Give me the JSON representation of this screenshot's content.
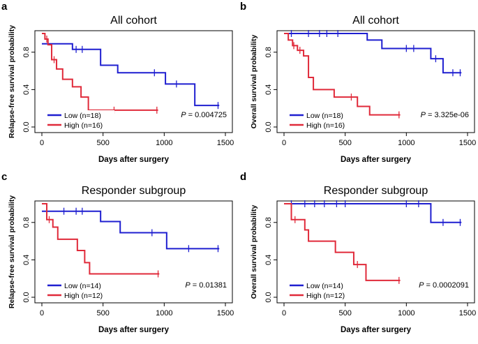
{
  "chart_data": [
    {
      "type": "line",
      "panel_label": "a",
      "title": "All cohort",
      "xlabel": "Days after surgery",
      "ylabel": "Relapse-free survival probability",
      "xlim": [
        0,
        1500
      ],
      "ylim": [
        0,
        1.0
      ],
      "xticks": [
        "0",
        "500",
        "1000",
        "1500"
      ],
      "yticks": [
        "0.0",
        "0.4",
        "0.8"
      ],
      "pvalue_prefix": "P",
      "pvalue": "= 0.004725",
      "series": [
        {
          "name": "Low (n=18)",
          "color": "#1f1fd0",
          "steps": [
            [
              0,
              0.89
            ],
            [
              250,
              0.83
            ],
            [
              480,
              0.66
            ],
            [
              620,
              0.58
            ],
            [
              1010,
              0.46
            ],
            [
              1250,
              0.23
            ],
            [
              1450,
              0.23
            ]
          ],
          "censor": [
            [
              280,
              0.83
            ],
            [
              330,
              0.83
            ],
            [
              920,
              0.58
            ],
            [
              1100,
              0.46
            ],
            [
              1440,
              0.23
            ]
          ]
        },
        {
          "name": "High (n=16)",
          "color": "#e02a3a",
          "steps": [
            [
              0,
              1.0
            ],
            [
              25,
              0.94
            ],
            [
              50,
              0.88
            ],
            [
              80,
              0.72
            ],
            [
              120,
              0.62
            ],
            [
              170,
              0.51
            ],
            [
              250,
              0.43
            ],
            [
              320,
              0.32
            ],
            [
              380,
              0.18
            ],
            [
              950,
              0.18
            ]
          ],
          "censor": [
            [
              40,
              0.94
            ],
            [
              100,
              0.72
            ],
            [
              590,
              0.18
            ],
            [
              940,
              0.18
            ]
          ]
        }
      ]
    },
    {
      "type": "line",
      "panel_label": "b",
      "title": "All cohort",
      "xlabel": "Days after surgery",
      "ylabel": "Overall survival probability",
      "xlim": [
        0,
        1500
      ],
      "ylim": [
        0,
        1.0
      ],
      "xticks": [
        "0",
        "500",
        "1000",
        "1500"
      ],
      "yticks": [
        "0.0",
        "0.4",
        "0.8"
      ],
      "pvalue_prefix": "P",
      "pvalue": "= 3.325e-06",
      "series": [
        {
          "name": "Low (n=18)",
          "color": "#1f1fd0",
          "steps": [
            [
              0,
              1.0
            ],
            [
              680,
              0.93
            ],
            [
              800,
              0.84
            ],
            [
              1200,
              0.73
            ],
            [
              1300,
              0.58
            ],
            [
              1450,
              0.58
            ]
          ],
          "censor": [
            [
              60,
              1.0
            ],
            [
              200,
              1.0
            ],
            [
              290,
              1.0
            ],
            [
              350,
              1.0
            ],
            [
              440,
              1.0
            ],
            [
              1000,
              0.84
            ],
            [
              1060,
              0.84
            ],
            [
              1240,
              0.73
            ],
            [
              1380,
              0.58
            ],
            [
              1440,
              0.58
            ]
          ]
        },
        {
          "name": "High (n=16)",
          "color": "#e02a3a",
          "steps": [
            [
              0,
              1.0
            ],
            [
              35,
              0.93
            ],
            [
              70,
              0.87
            ],
            [
              110,
              0.82
            ],
            [
              160,
              0.76
            ],
            [
              200,
              0.53
            ],
            [
              240,
              0.4
            ],
            [
              410,
              0.32
            ],
            [
              600,
              0.22
            ],
            [
              700,
              0.13
            ],
            [
              950,
              0.13
            ]
          ],
          "censor": [
            [
              80,
              0.87
            ],
            [
              130,
              0.82
            ],
            [
              550,
              0.32
            ],
            [
              940,
              0.13
            ]
          ]
        }
      ]
    },
    {
      "type": "line",
      "panel_label": "c",
      "title": "Responder subgroup",
      "xlabel": "Days after surgery",
      "ylabel": "Relapse-free survival probability",
      "xlim": [
        0,
        1500
      ],
      "ylim": [
        0,
        1.0
      ],
      "xticks": [
        "0",
        "500",
        "1000",
        "1500"
      ],
      "yticks": [
        "0.0",
        "0.4",
        "0.8"
      ],
      "pvalue_prefix": "P",
      "pvalue": "= 0.01381",
      "series": [
        {
          "name": "Low (n=14)",
          "color": "#1f1fd0",
          "steps": [
            [
              0,
              0.92
            ],
            [
              480,
              0.81
            ],
            [
              640,
              0.69
            ],
            [
              1020,
              0.52
            ],
            [
              1450,
              0.52
            ]
          ],
          "censor": [
            [
              180,
              0.92
            ],
            [
              280,
              0.92
            ],
            [
              330,
              0.92
            ],
            [
              900,
              0.69
            ],
            [
              1200,
              0.52
            ],
            [
              1440,
              0.52
            ]
          ]
        },
        {
          "name": "High (n=12)",
          "color": "#e02a3a",
          "steps": [
            [
              0,
              1.0
            ],
            [
              40,
              0.83
            ],
            [
              90,
              0.75
            ],
            [
              130,
              0.62
            ],
            [
              290,
              0.5
            ],
            [
              350,
              0.37
            ],
            [
              390,
              0.25
            ],
            [
              960,
              0.25
            ]
          ],
          "censor": [
            [
              60,
              0.83
            ],
            [
              950,
              0.25
            ]
          ]
        }
      ]
    },
    {
      "type": "line",
      "panel_label": "d",
      "title": "Responder subgroup",
      "xlabel": "Days after surgery",
      "ylabel": "Overall survival probability",
      "xlim": [
        0,
        1500
      ],
      "ylim": [
        0,
        1.0
      ],
      "xticks": [
        "0",
        "500",
        "1000",
        "1500"
      ],
      "yticks": [
        "0.0",
        "0.4",
        "0.8"
      ],
      "pvalue_prefix": "P",
      "pvalue": "= 0.0002091",
      "series": [
        {
          "name": "Low (n=14)",
          "color": "#1f1fd0",
          "steps": [
            [
              0,
              1.0
            ],
            [
              1200,
              0.8
            ],
            [
              1450,
              0.8
            ]
          ],
          "censor": [
            [
              60,
              1.0
            ],
            [
              170,
              1.0
            ],
            [
              250,
              1.0
            ],
            [
              330,
              1.0
            ],
            [
              430,
              1.0
            ],
            [
              500,
              1.0
            ],
            [
              1000,
              1.0
            ],
            [
              1100,
              1.0
            ],
            [
              1300,
              0.8
            ],
            [
              1440,
              0.8
            ]
          ]
        },
        {
          "name": "High (n=12)",
          "color": "#e02a3a",
          "steps": [
            [
              0,
              1.0
            ],
            [
              60,
              0.83
            ],
            [
              170,
              0.72
            ],
            [
              200,
              0.6
            ],
            [
              420,
              0.48
            ],
            [
              570,
              0.35
            ],
            [
              670,
              0.18
            ],
            [
              950,
              0.18
            ]
          ],
          "censor": [
            [
              90,
              0.83
            ],
            [
              600,
              0.35
            ],
            [
              940,
              0.18
            ]
          ]
        }
      ]
    }
  ]
}
